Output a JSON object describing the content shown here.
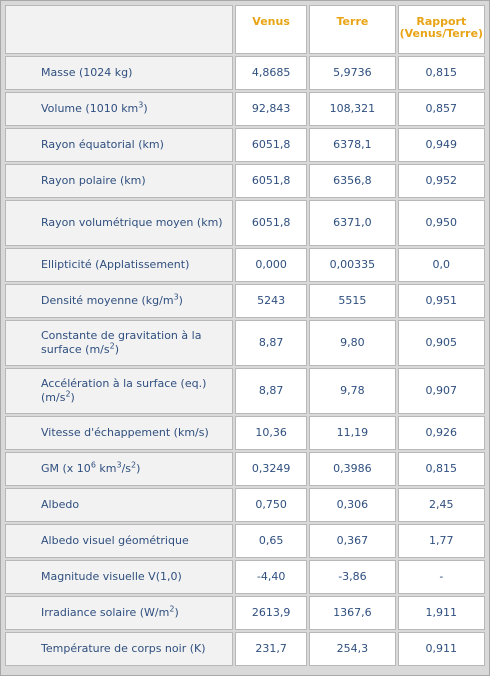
{
  "headers": [
    "",
    "Venus",
    "Terre",
    "Rapport (Venus/Terre)"
  ],
  "rows": [
    {
      "label": "Masse (1024 kg)",
      "venus": "4,8685",
      "terre": "5,9736",
      "ratio": "0,815"
    },
    {
      "label_pre": "Volume (1010 km",
      "label_sup": "3",
      "label_post": ")",
      "venus": "92,843",
      "terre": "108,321",
      "ratio": "0,857"
    },
    {
      "label": "Rayon équatorial (km)",
      "venus": "6051,8",
      "terre": "6378,1",
      "ratio": "0,949"
    },
    {
      "label": "Rayon polaire (km)",
      "venus": "6051,8",
      "terre": "6356,8",
      "ratio": "0,952"
    },
    {
      "label": "Rayon volumétrique moyen (km)",
      "venus": "6051,8",
      "terre": "6371,0",
      "ratio": "0,950"
    },
    {
      "label": "Ellipticité (Applatissement)",
      "venus": "0,000",
      "terre": "0,00335",
      "ratio": "0,0"
    },
    {
      "label_pre": "Densité moyenne (kg/m",
      "label_sup": "3",
      "label_post": ")",
      "venus": "5243",
      "terre": "5515",
      "ratio": "0,951"
    },
    {
      "label_pre": "Constante de gravitation à la surface (m/s",
      "label_sup": "2",
      "label_post": ")",
      "venus": "8,87",
      "terre": "9,80",
      "ratio": "0,905"
    },
    {
      "label_pre": "Accélération à la surface (eq.) (m/s",
      "label_sup": "2",
      "label_post": ")",
      "venus": "8,87",
      "terre": "9,78",
      "ratio": "0,907"
    },
    {
      "label": "Vitesse d'échappement (km/s)",
      "venus": "10,36",
      "terre": "11,19",
      "ratio": "0,926"
    },
    {
      "label_pre": "GM (x 10",
      "label_sup": "6",
      "label_mid": " km",
      "label_sup2": "3",
      "label_mid2": "/s",
      "label_sup3": "2",
      "label_post": ")",
      "venus": "0,3249",
      "terre": "0,3986",
      "ratio": "0,815"
    },
    {
      "label": "Albedo",
      "venus": "0,750",
      "terre": "0,306",
      "ratio": "2,45"
    },
    {
      "label": "Albedo visuel géométrique",
      "venus": "0,65",
      "terre": "0,367",
      "ratio": "1,77"
    },
    {
      "label": "Magnitude visuelle V(1,0)",
      "venus": "-4,40",
      "terre": "-3,86",
      "ratio": "-"
    },
    {
      "label_pre": "Irradiance solaire (W/m",
      "label_sup": "2",
      "label_post": ")",
      "venus": "2613,9",
      "terre": "1367,6",
      "ratio": "1,911"
    },
    {
      "label": "Température de corps noir (K)",
      "venus": "231,7",
      "terre": "254,3",
      "ratio": "0,911"
    }
  ]
}
